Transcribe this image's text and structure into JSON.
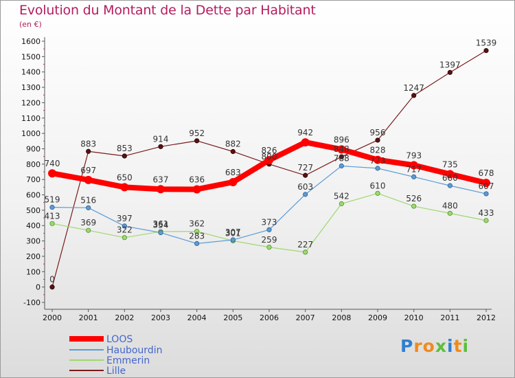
{
  "chart_data": {
    "type": "line",
    "title": "Evolution du Montant de la Dette par Habitant",
    "subtitle": "(en €)",
    "xlabel": "",
    "ylabel": "",
    "categories": [
      "2000",
      "2001",
      "2002",
      "2003",
      "2004",
      "2005",
      "2006",
      "2007",
      "2008",
      "2009",
      "2010",
      "2011",
      "2012"
    ],
    "ylim": [
      -100,
      1600
    ],
    "yticks": [
      "-100",
      "0",
      "100",
      "200",
      "300",
      "400",
      "500",
      "600",
      "700",
      "800",
      "900",
      "1000",
      "1100",
      "1200",
      "1300",
      "1400",
      "1500",
      "1600"
    ],
    "grid": false,
    "legend_placement": "bottom-left",
    "series": [
      {
        "name": "LOOS",
        "color": "#ff0000",
        "values": [
          740,
          697,
          650,
          637,
          636,
          683,
          826,
          942,
          896,
          828,
          793,
          735,
          678
        ]
      },
      {
        "name": "Haubourdin",
        "color": "#5b9bd5",
        "values": [
          519,
          516,
          397,
          354,
          283,
          307,
          373,
          603,
          788,
          773,
          717,
          660,
          607
        ]
      },
      {
        "name": "Emmerin",
        "color": "#9fd86e",
        "values": [
          413,
          369,
          322,
          361,
          362,
          301,
          259,
          227,
          542,
          610,
          526,
          480,
          433
        ]
      },
      {
        "name": "Lille",
        "color": "#7a1a1a",
        "values": [
          0,
          883,
          853,
          914,
          952,
          882,
          800,
          727,
          848,
          956,
          1247,
          1397,
          1539
        ]
      }
    ]
  },
  "brand": {
    "text": "Proxiti",
    "colors": [
      "#2f7fd1",
      "#f08a1c",
      "#f08a1c",
      "#5bbf3a",
      "#2f7fd1",
      "#f08a1c",
      "#5bbf3a"
    ]
  }
}
